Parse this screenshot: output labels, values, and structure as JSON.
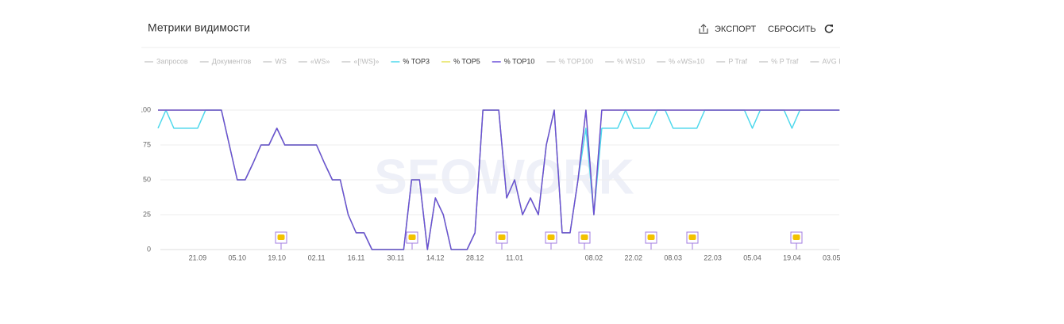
{
  "header": {
    "title": "Метрики видимости",
    "buttons": [
      "ЭКСПОРТ",
      "СБРОСИТЬ"
    ]
  },
  "watermark": "SEOWORK",
  "chart_data": {
    "type": "line",
    "categories": [
      null,
      null,
      null,
      null,
      null,
      "21.09",
      null,
      null,
      null,
      null,
      "05.10",
      null,
      null,
      null,
      null,
      "19.10",
      null,
      null,
      null,
      null,
      "02.11",
      null,
      null,
      null,
      null,
      "16.11",
      null,
      null,
      null,
      null,
      "30.11",
      null,
      null,
      null,
      null,
      "14.12",
      null,
      null,
      null,
      null,
      "28.12",
      null,
      null,
      null,
      null,
      "11.01",
      null,
      null,
      null,
      null,
      null,
      null,
      null,
      null,
      null,
      "08.02",
      null,
      null,
      null,
      null,
      "22.02",
      null,
      null,
      null,
      null,
      "08.03",
      null,
      null,
      null,
      null,
      "22.03",
      null,
      null,
      null,
      null,
      "05.04",
      null,
      null,
      null,
      null,
      "19.04",
      null,
      null,
      null,
      null,
      "03.05",
      null
    ],
    "ylim": [
      0,
      100
    ],
    "yticks": [
      0,
      25,
      50,
      75,
      100
    ],
    "grid": true,
    "series": [
      {
        "name": "Запросов",
        "color": "#cccccc",
        "visible": false
      },
      {
        "name": "Документов",
        "color": "#cccccc",
        "visible": false
      },
      {
        "name": "WS",
        "color": "#cccccc",
        "visible": false
      },
      {
        "name": "«WS»",
        "color": "#cccccc",
        "visible": false
      },
      {
        "name": "«[!WS]»",
        "color": "#cccccc",
        "visible": false
      },
      {
        "name": "% TOP3",
        "color": "#4dd8ec",
        "visible": true,
        "values": [
          87,
          100,
          87,
          87,
          87,
          87,
          100,
          100,
          100,
          75,
          50,
          50,
          62,
          75,
          75,
          87,
          75,
          75,
          75,
          75,
          75,
          62,
          50,
          50,
          25,
          12,
          12,
          0,
          0,
          0,
          0,
          0,
          50,
          50,
          0,
          37,
          25,
          0,
          0,
          0,
          12,
          100,
          100,
          100,
          37,
          50,
          25,
          37,
          25,
          75,
          100,
          12,
          12,
          50,
          87,
          25,
          87,
          87,
          87,
          100,
          87,
          87,
          87,
          100,
          100,
          87,
          87,
          87,
          87,
          100,
          100,
          100,
          100,
          100,
          100,
          87,
          100,
          100,
          100,
          100,
          87,
          100,
          100,
          100,
          100,
          100,
          100
        ]
      },
      {
        "name": "% TOP5",
        "color": "#e6e35a",
        "visible": true,
        "values": [
          100,
          100,
          100,
          100,
          100,
          100,
          100,
          100,
          100,
          75,
          50,
          50,
          62,
          75,
          75,
          87,
          75,
          75,
          75,
          75,
          75,
          62,
          50,
          50,
          25,
          12,
          12,
          0,
          0,
          0,
          0,
          0,
          50,
          50,
          0,
          37,
          25,
          0,
          0,
          0,
          12,
          100,
          100,
          100,
          37,
          50,
          25,
          37,
          25,
          75,
          100,
          12,
          12,
          50,
          100,
          25,
          100,
          100,
          100,
          100,
          100,
          100,
          100,
          100,
          100,
          100,
          100,
          100,
          100,
          100,
          100,
          100,
          100,
          100,
          100,
          100,
          100,
          100,
          100,
          100,
          100,
          100,
          100,
          100,
          100,
          100,
          100
        ]
      },
      {
        "name": "% TOP10",
        "color": "#6a4fd8",
        "visible": true,
        "values": [
          100,
          100,
          100,
          100,
          100,
          100,
          100,
          100,
          100,
          75,
          50,
          50,
          62,
          75,
          75,
          87,
          75,
          75,
          75,
          75,
          75,
          62,
          50,
          50,
          25,
          12,
          12,
          0,
          0,
          0,
          0,
          0,
          50,
          50,
          0,
          37,
          25,
          0,
          0,
          0,
          12,
          100,
          100,
          100,
          37,
          50,
          25,
          37,
          25,
          75,
          100,
          12,
          12,
          50,
          100,
          25,
          100,
          100,
          100,
          100,
          100,
          100,
          100,
          100,
          100,
          100,
          100,
          100,
          100,
          100,
          100,
          100,
          100,
          100,
          100,
          100,
          100,
          100,
          100,
          100,
          100,
          100,
          100,
          100,
          100,
          100,
          100
        ]
      },
      {
        "name": "% TOP100",
        "color": "#cccccc",
        "visible": false
      },
      {
        "name": "% WS10",
        "color": "#cccccc",
        "visible": false
      },
      {
        "name": "% «WS»10",
        "color": "#cccccc",
        "visible": false
      },
      {
        "name": "P Traf",
        "color": "#cccccc",
        "visible": false
      },
      {
        "name": "% P Traf",
        "color": "#cccccc",
        "visible": false
      },
      {
        "name": "AVG Position",
        "color": "#cccccc",
        "visible": false
      }
    ]
  }
}
